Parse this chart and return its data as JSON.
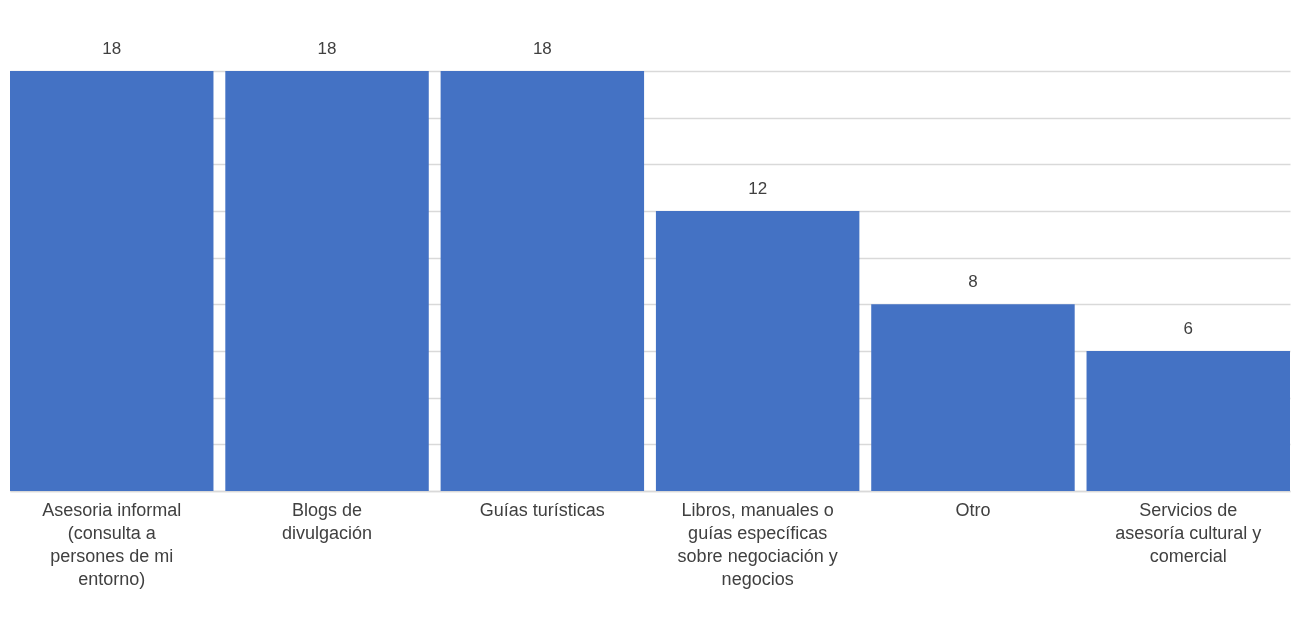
{
  "chart_data": {
    "type": "bar",
    "categories": [
      "Asesoria informal (consulta a persones de mi entorno)",
      "Blogs de divulgación",
      "Guías turísticas",
      "Libros, manuales o guías específicas sobre negociación y negocios",
      "Otro",
      "Servicios de asesoría cultural y comercial"
    ],
    "values": [
      18,
      18,
      18,
      12,
      8,
      6
    ],
    "color": "#4472c4",
    "ylim": [
      0,
      18
    ],
    "yticks": [
      {
        "value": 0,
        "label": null
      },
      {
        "value": 2,
        "label": null
      },
      {
        "value": 4,
        "label": null
      },
      {
        "value": 6,
        "label": null
      },
      {
        "value": 8,
        "label": null
      },
      {
        "value": 10,
        "label": null
      },
      {
        "value": 12,
        "label": null
      },
      {
        "value": 14,
        "label": null
      },
      {
        "value": 16,
        "label": null
      },
      {
        "value": 18,
        "label": null
      }
    ],
    "grid": "y",
    "data_labels": true,
    "tick_labels": "x"
  }
}
